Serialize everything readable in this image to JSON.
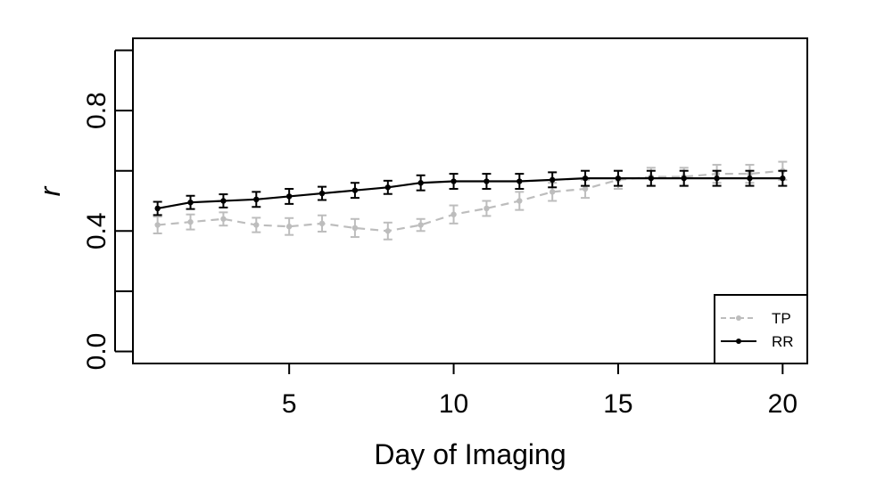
{
  "chart_data": {
    "type": "line",
    "title": "",
    "xlabel": "Day of Imaging",
    "ylabel": "r",
    "xlim": [
      0.25,
      20.75
    ],
    "ylim": [
      -0.04,
      1.04
    ],
    "x_ticks": [
      5,
      10,
      15,
      20
    ],
    "x_tick_labels": [
      "5",
      "10",
      "15",
      "20"
    ],
    "y_ticks": [
      0.0,
      0.2,
      0.4,
      0.6,
      0.8,
      1.0
    ],
    "y_tick_labels": [
      "0.0",
      "",
      "0.4",
      "",
      "0.8",
      ""
    ],
    "grid": false,
    "legend_position": "bottom-right",
    "x": [
      1,
      2,
      3,
      4,
      5,
      6,
      7,
      8,
      9,
      10,
      11,
      12,
      13,
      14,
      15,
      16,
      17,
      18,
      19,
      20
    ],
    "series": [
      {
        "name": "TP",
        "color": "#bdbdbd",
        "line_style": "dashed",
        "values": [
          0.42,
          0.43,
          0.44,
          0.42,
          0.415,
          0.425,
          0.41,
          0.4,
          0.42,
          0.455,
          0.475,
          0.5,
          0.53,
          0.54,
          0.57,
          0.58,
          0.58,
          0.59,
          0.59,
          0.6
        ],
        "error": [
          0.028,
          0.025,
          0.022,
          0.024,
          0.028,
          0.027,
          0.03,
          0.028,
          0.02,
          0.03,
          0.025,
          0.03,
          0.03,
          0.03,
          0.03,
          0.03,
          0.03,
          0.03,
          0.03,
          0.03
        ]
      },
      {
        "name": "RR",
        "color": "#000000",
        "line_style": "solid",
        "values": [
          0.475,
          0.495,
          0.5,
          0.505,
          0.515,
          0.525,
          0.535,
          0.545,
          0.56,
          0.565,
          0.565,
          0.565,
          0.57,
          0.575,
          0.575,
          0.575,
          0.575,
          0.575,
          0.575,
          0.575
        ],
        "error": [
          0.022,
          0.022,
          0.022,
          0.025,
          0.025,
          0.022,
          0.025,
          0.022,
          0.025,
          0.025,
          0.025,
          0.025,
          0.025,
          0.025,
          0.025,
          0.025,
          0.025,
          0.025,
          0.025,
          0.025
        ]
      }
    ]
  }
}
